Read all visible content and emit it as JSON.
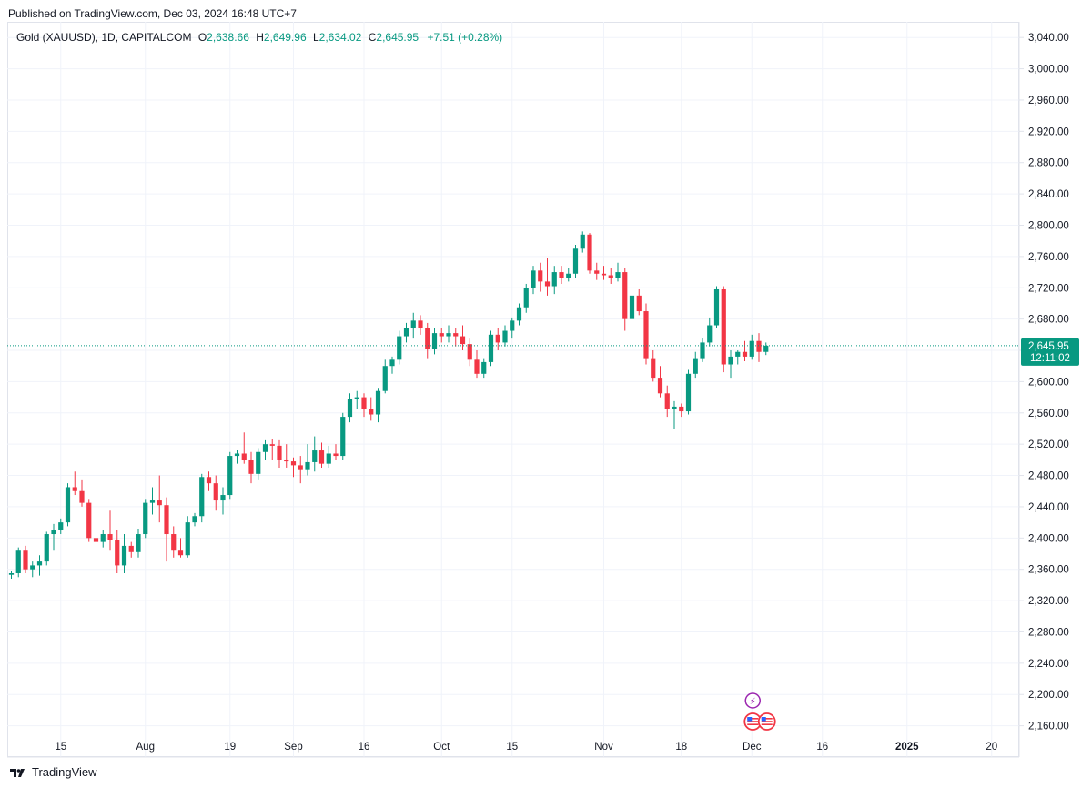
{
  "header": {
    "published": "Published on TradingView.com, Dec 03, 2024 16:48 UTC+7"
  },
  "legend": {
    "symbol": "Gold (XAUUSD), 1D, CAPITALCOM",
    "o_key": "O",
    "o_val": "2,638.66",
    "h_key": "H",
    "h_val": "2,649.96",
    "l_key": "L",
    "l_val": "2,634.02",
    "c_key": "C",
    "c_val": "2,645.95",
    "change": "+7.51 (+0.28%)"
  },
  "footer": {
    "brand": "TradingView"
  },
  "colors": {
    "up": "#089981",
    "down": "#f23645",
    "grid": "#f0f3fa",
    "axis": "#e0e3eb",
    "price_line": "#089981"
  },
  "chart_data": {
    "type": "candlestick",
    "title": "Gold (XAUUSD), 1D, CAPITALCOM",
    "ylim": [
      2120,
      3060
    ],
    "y_ticks": [
      2160,
      2200,
      2240,
      2280,
      2320,
      2360,
      2400,
      2440,
      2480,
      2520,
      2560,
      2600,
      2640,
      2680,
      2720,
      2760,
      2800,
      2840,
      2880,
      2920,
      2960,
      3000,
      3040
    ],
    "y_tick_labels": [
      "2,160.00",
      "2,200.00",
      "2,240.00",
      "2,280.00",
      "2,320.00",
      "2,360.00",
      "2,400.00",
      "2,440.00",
      "2,480.00",
      "2,520.00",
      "2,560.00",
      "2,600.00",
      "2,640.00",
      "2,680.00",
      "2,720.00",
      "2,760.00",
      "2,800.00",
      "2,840.00",
      "2,880.00",
      "2,920.00",
      "2,960.00",
      "3,000.00",
      "3,040.00"
    ],
    "x_ticks": [
      {
        "label": "15",
        "index": 7,
        "bold": false
      },
      {
        "label": "Aug",
        "index": 19,
        "bold": false
      },
      {
        "label": "19",
        "index": 31,
        "bold": false
      },
      {
        "label": "Sep",
        "index": 40,
        "bold": false
      },
      {
        "label": "16",
        "index": 50,
        "bold": false
      },
      {
        "label": "Oct",
        "index": 61,
        "bold": false
      },
      {
        "label": "15",
        "index": 71,
        "bold": false
      },
      {
        "label": "Nov",
        "index": 84,
        "bold": false
      },
      {
        "label": "18",
        "index": 95,
        "bold": false
      },
      {
        "label": "Dec",
        "index": 105,
        "bold": false
      },
      {
        "label": "16",
        "index": 115,
        "bold": false
      },
      {
        "label": "2025",
        "index": 127,
        "bold": true
      },
      {
        "label": "20",
        "index": 139,
        "bold": false
      }
    ],
    "last_price": {
      "value": 2645.95,
      "label": "2,645.95",
      "countdown": "12:11:02"
    },
    "ohlc": [
      [
        2353,
        2358,
        2348,
        2355
      ],
      [
        2355,
        2388,
        2350,
        2385
      ],
      [
        2385,
        2390,
        2355,
        2360
      ],
      [
        2360,
        2370,
        2350,
        2365
      ],
      [
        2365,
        2378,
        2352,
        2370
      ],
      [
        2370,
        2408,
        2365,
        2405
      ],
      [
        2405,
        2418,
        2385,
        2410
      ],
      [
        2410,
        2425,
        2405,
        2420
      ],
      [
        2420,
        2470,
        2415,
        2465
      ],
      [
        2465,
        2485,
        2455,
        2460
      ],
      [
        2460,
        2475,
        2440,
        2445
      ],
      [
        2445,
        2450,
        2395,
        2400
      ],
      [
        2400,
        2412,
        2385,
        2395
      ],
      [
        2395,
        2410,
        2388,
        2405
      ],
      [
        2405,
        2435,
        2385,
        2398
      ],
      [
        2398,
        2410,
        2355,
        2365
      ],
      [
        2365,
        2405,
        2355,
        2390
      ],
      [
        2390,
        2395,
        2375,
        2382
      ],
      [
        2382,
        2412,
        2375,
        2405
      ],
      [
        2405,
        2450,
        2400,
        2445
      ],
      [
        2445,
        2465,
        2430,
        2448
      ],
      [
        2448,
        2480,
        2420,
        2442
      ],
      [
        2442,
        2452,
        2370,
        2405
      ],
      [
        2405,
        2415,
        2375,
        2385
      ],
      [
        2385,
        2400,
        2375,
        2378
      ],
      [
        2378,
        2428,
        2375,
        2420
      ],
      [
        2420,
        2432,
        2415,
        2428
      ],
      [
        2428,
        2482,
        2420,
        2478
      ],
      [
        2478,
        2485,
        2460,
        2470
      ],
      [
        2470,
        2480,
        2435,
        2448
      ],
      [
        2448,
        2465,
        2430,
        2455
      ],
      [
        2455,
        2510,
        2450,
        2505
      ],
      [
        2505,
        2512,
        2495,
        2508
      ],
      [
        2508,
        2535,
        2495,
        2500
      ],
      [
        2500,
        2510,
        2470,
        2482
      ],
      [
        2482,
        2515,
        2475,
        2510
      ],
      [
        2510,
        2525,
        2500,
        2520
      ],
      [
        2520,
        2527,
        2500,
        2518
      ],
      [
        2518,
        2525,
        2490,
        2500
      ],
      [
        2500,
        2520,
        2490,
        2498
      ],
      [
        2498,
        2503,
        2478,
        2493
      ],
      [
        2493,
        2505,
        2470,
        2488
      ],
      [
        2488,
        2520,
        2480,
        2497
      ],
      [
        2497,
        2530,
        2485,
        2512
      ],
      [
        2512,
        2522,
        2490,
        2495
      ],
      [
        2495,
        2518,
        2490,
        2508
      ],
      [
        2508,
        2520,
        2500,
        2505
      ],
      [
        2505,
        2560,
        2500,
        2555
      ],
      [
        2555,
        2585,
        2548,
        2578
      ],
      [
        2578,
        2588,
        2565,
        2580
      ],
      [
        2580,
        2585,
        2555,
        2565
      ],
      [
        2565,
        2580,
        2550,
        2558
      ],
      [
        2558,
        2592,
        2548,
        2588
      ],
      [
        2588,
        2628,
        2585,
        2620
      ],
      [
        2620,
        2632,
        2610,
        2628
      ],
      [
        2628,
        2665,
        2622,
        2658
      ],
      [
        2658,
        2675,
        2650,
        2668
      ],
      [
        2668,
        2688,
        2655,
        2678
      ],
      [
        2678,
        2685,
        2660,
        2668
      ],
      [
        2668,
        2675,
        2630,
        2642
      ],
      [
        2642,
        2668,
        2635,
        2662
      ],
      [
        2662,
        2668,
        2650,
        2658
      ],
      [
        2658,
        2672,
        2650,
        2662
      ],
      [
        2662,
        2668,
        2645,
        2658
      ],
      [
        2658,
        2672,
        2640,
        2648
      ],
      [
        2648,
        2655,
        2620,
        2628
      ],
      [
        2628,
        2640,
        2605,
        2610
      ],
      [
        2610,
        2630,
        2605,
        2625
      ],
      [
        2625,
        2665,
        2620,
        2660
      ],
      [
        2660,
        2668,
        2640,
        2650
      ],
      [
        2650,
        2672,
        2645,
        2665
      ],
      [
        2665,
        2682,
        2655,
        2678
      ],
      [
        2678,
        2700,
        2672,
        2695
      ],
      [
        2695,
        2725,
        2688,
        2720
      ],
      [
        2720,
        2748,
        2712,
        2742
      ],
      [
        2742,
        2752,
        2715,
        2728
      ],
      [
        2728,
        2758,
        2710,
        2722
      ],
      [
        2722,
        2748,
        2712,
        2740
      ],
      [
        2740,
        2748,
        2725,
        2732
      ],
      [
        2732,
        2745,
        2728,
        2738
      ],
      [
        2738,
        2775,
        2732,
        2770
      ],
      [
        2770,
        2792,
        2765,
        2788
      ],
      [
        2788,
        2790,
        2738,
        2742
      ],
      [
        2742,
        2752,
        2730,
        2738
      ],
      [
        2738,
        2748,
        2730,
        2736
      ],
      [
        2736,
        2745,
        2725,
        2733
      ],
      [
        2733,
        2752,
        2728,
        2740
      ],
      [
        2740,
        2745,
        2665,
        2680
      ],
      [
        2680,
        2715,
        2650,
        2710
      ],
      [
        2710,
        2718,
        2685,
        2690
      ],
      [
        2690,
        2700,
        2622,
        2630
      ],
      [
        2630,
        2640,
        2600,
        2605
      ],
      [
        2605,
        2620,
        2580,
        2585
      ],
      [
        2585,
        2595,
        2555,
        2565
      ],
      [
        2565,
        2575,
        2540,
        2568
      ],
      [
        2568,
        2572,
        2555,
        2562
      ],
      [
        2562,
        2615,
        2558,
        2610
      ],
      [
        2610,
        2638,
        2605,
        2630
      ],
      [
        2630,
        2656,
        2625,
        2650
      ],
      [
        2650,
        2682,
        2645,
        2672
      ],
      [
        2672,
        2722,
        2668,
        2718
      ],
      [
        2718,
        2722,
        2612,
        2622
      ],
      [
        2622,
        2640,
        2605,
        2632
      ],
      [
        2632,
        2640,
        2622,
        2638
      ],
      [
        2638,
        2652,
        2626,
        2632
      ],
      [
        2632,
        2660,
        2628,
        2652
      ],
      [
        2652,
        2662,
        2625,
        2638
      ],
      [
        2638,
        2650,
        2634,
        2646
      ]
    ],
    "events": [
      {
        "index": 105,
        "type": "bolt",
        "label": "⚡"
      },
      {
        "index": 105,
        "type": "flag",
        "label": "US"
      },
      {
        "index": 107,
        "type": "flag",
        "label": "US"
      }
    ]
  }
}
